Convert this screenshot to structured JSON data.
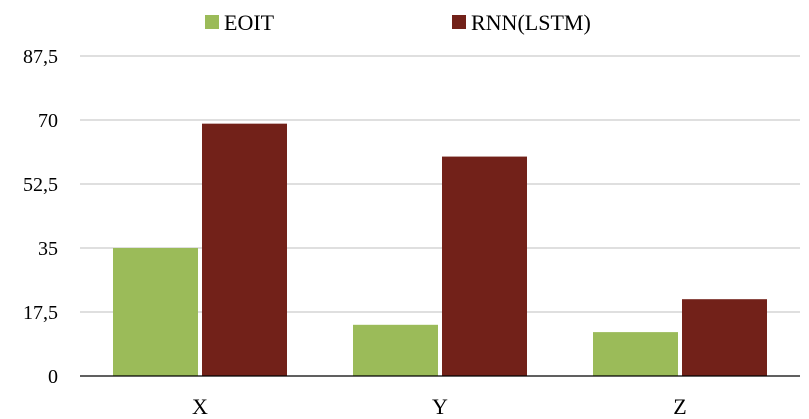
{
  "chart_data": {
    "type": "bar",
    "categories": [
      "X",
      "Y",
      "Z"
    ],
    "series": [
      {
        "name": "EOIT",
        "values": [
          35,
          14,
          12
        ],
        "color": "#9bbb59"
      },
      {
        "name": "RNN(LSTM)",
        "values": [
          69,
          60,
          21
        ],
        "color": "#722119"
      }
    ],
    "yticks": [
      "0",
      "17,5",
      "35",
      "52,5",
      "70",
      "87,5"
    ],
    "ytick_values": [
      0,
      17.5,
      35,
      52.5,
      70,
      87.5
    ],
    "ylim": [
      0,
      87.5
    ],
    "grid": true,
    "legend_position": "top-center",
    "title": "",
    "xlabel": "",
    "ylabel": ""
  }
}
